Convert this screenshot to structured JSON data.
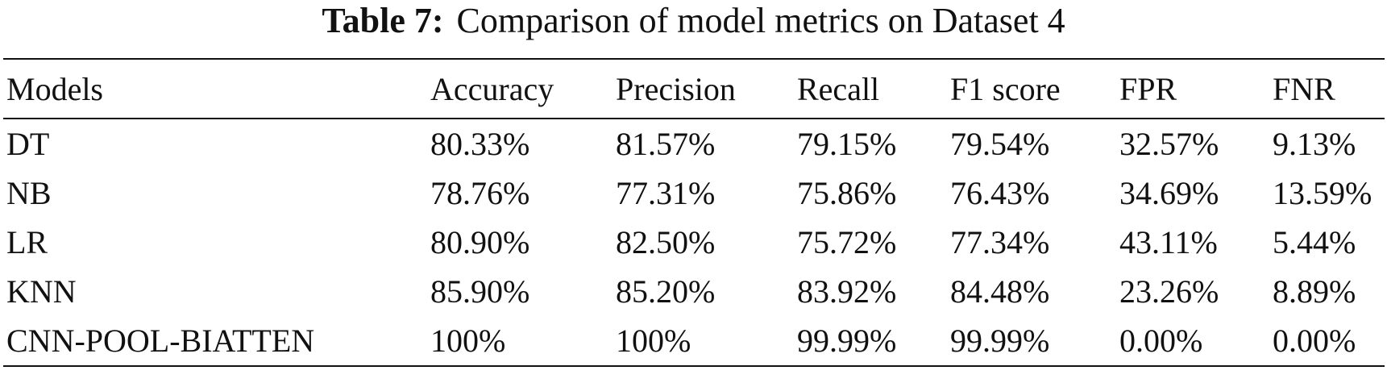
{
  "caption": {
    "label": "Table 7:",
    "text": "Comparison of model metrics on Dataset 4"
  },
  "table": {
    "headers": [
      "Models",
      "Accuracy",
      "Precision",
      "Recall",
      "F1 score",
      "FPR",
      "FNR"
    ],
    "rows": [
      [
        "DT",
        "80.33%",
        "81.57%",
        "79.15%",
        "79.54%",
        "32.57%",
        "9.13%"
      ],
      [
        "NB",
        "78.76%",
        "77.31%",
        "75.86%",
        "76.43%",
        "34.69%",
        "13.59%"
      ],
      [
        "LR",
        "80.90%",
        "82.50%",
        "75.72%",
        "77.34%",
        "43.11%",
        "5.44%"
      ],
      [
        "KNN",
        "85.90%",
        "85.20%",
        "83.92%",
        "84.48%",
        "23.26%",
        "8.89%"
      ],
      [
        "CNN-POOL-BIATTEN",
        "100%",
        "100%",
        "99.99%",
        "99.99%",
        "0.00%",
        "0.00%"
      ]
    ]
  }
}
